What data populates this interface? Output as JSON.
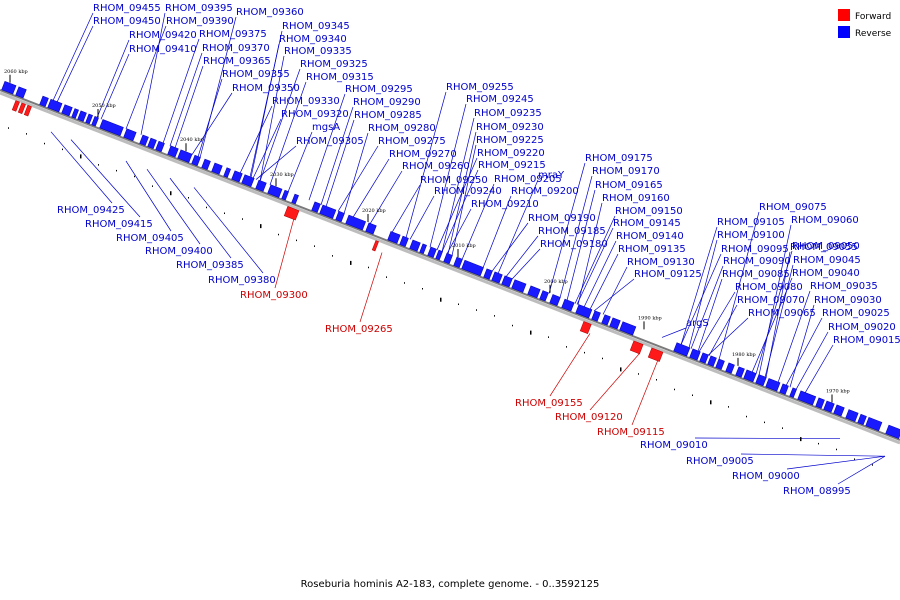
{
  "caption": "Roseburia hominis A2-183, complete genome. - 0..3592125",
  "legend": [
    {
      "label": "Forward",
      "color": "#ff0000"
    },
    {
      "label": "Reverse",
      "color": "#0000ff"
    }
  ],
  "scale_ticks": [
    "2060 kbp",
    "2050 kbp",
    "2040 kbp",
    "2030 kbp",
    "2020 kbp",
    "2010 kbp",
    "2000 kbp",
    "1990 kbp",
    "1980 kbp",
    "1970 kbp"
  ],
  "reverse_labels": [
    "RHOM_09455",
    "RHOM_09450",
    "RHOM_09420",
    "RHOM_09410",
    "RHOM_09395",
    "RHOM_09390",
    "RHOM_09375",
    "RHOM_09370",
    "RHOM_09365",
    "RHOM_09355",
    "RHOM_09350",
    "RHOM_09360",
    "RHOM_09345",
    "RHOM_09340",
    "RHOM_09335",
    "RHOM_09325",
    "RHOM_09315",
    "RHOM_09330",
    "RHOM_09320",
    "mgsA",
    "RHOM_09305",
    "RHOM_09295",
    "RHOM_09290",
    "RHOM_09285",
    "RHOM_09280",
    "RHOM_09275",
    "RHOM_09270",
    "RHOM_09260",
    "RHOM_09250",
    "RHOM_09240",
    "RHOM_09255",
    "RHOM_09245",
    "RHOM_09235",
    "RHOM_09230",
    "RHOM_09225",
    "RHOM_09220",
    "RHOM_09215",
    "RHOM_09205",
    "RHOM_09200",
    "RHOM_09210",
    "mraY",
    "RHOM_09175",
    "RHOM_09170",
    "RHOM_09165",
    "RHOM_09160",
    "RHOM_09150",
    "RHOM_09145",
    "RHOM_09140",
    "RHOM_09135",
    "RHOM_09130",
    "RHOM_09125",
    "RHOM_09190",
    "RHOM_09185",
    "RHOM_09180",
    "argS",
    "RHOM_09075",
    "RHOM_09105",
    "RHOM_09060",
    "RHOM_09100",
    "RHOM_09055",
    "RHOM_09095",
    "RHOM_09050",
    "RHOM_09090",
    "RHOM_09045",
    "RHOM_09085",
    "RHOM_09040",
    "RHOM_09080",
    "RHOM_09035",
    "RHOM_09070",
    "RHOM_09030",
    "RHOM_09065",
    "RHOM_09025",
    "RHOM_09020",
    "RHOM_09015",
    "RHOM_09425",
    "RHOM_09415",
    "RHOM_09405",
    "RHOM_09400",
    "RHOM_09385",
    "RHOM_09380",
    "RHOM_09010",
    "RHOM_09005",
    "RHOM_09000",
    "RHOM_08995"
  ],
  "forward_labels": [
    "RHOM_09300",
    "RHOM_09265",
    "RHOM_09155",
    "RHOM_09120",
    "RHOM_09115"
  ]
}
